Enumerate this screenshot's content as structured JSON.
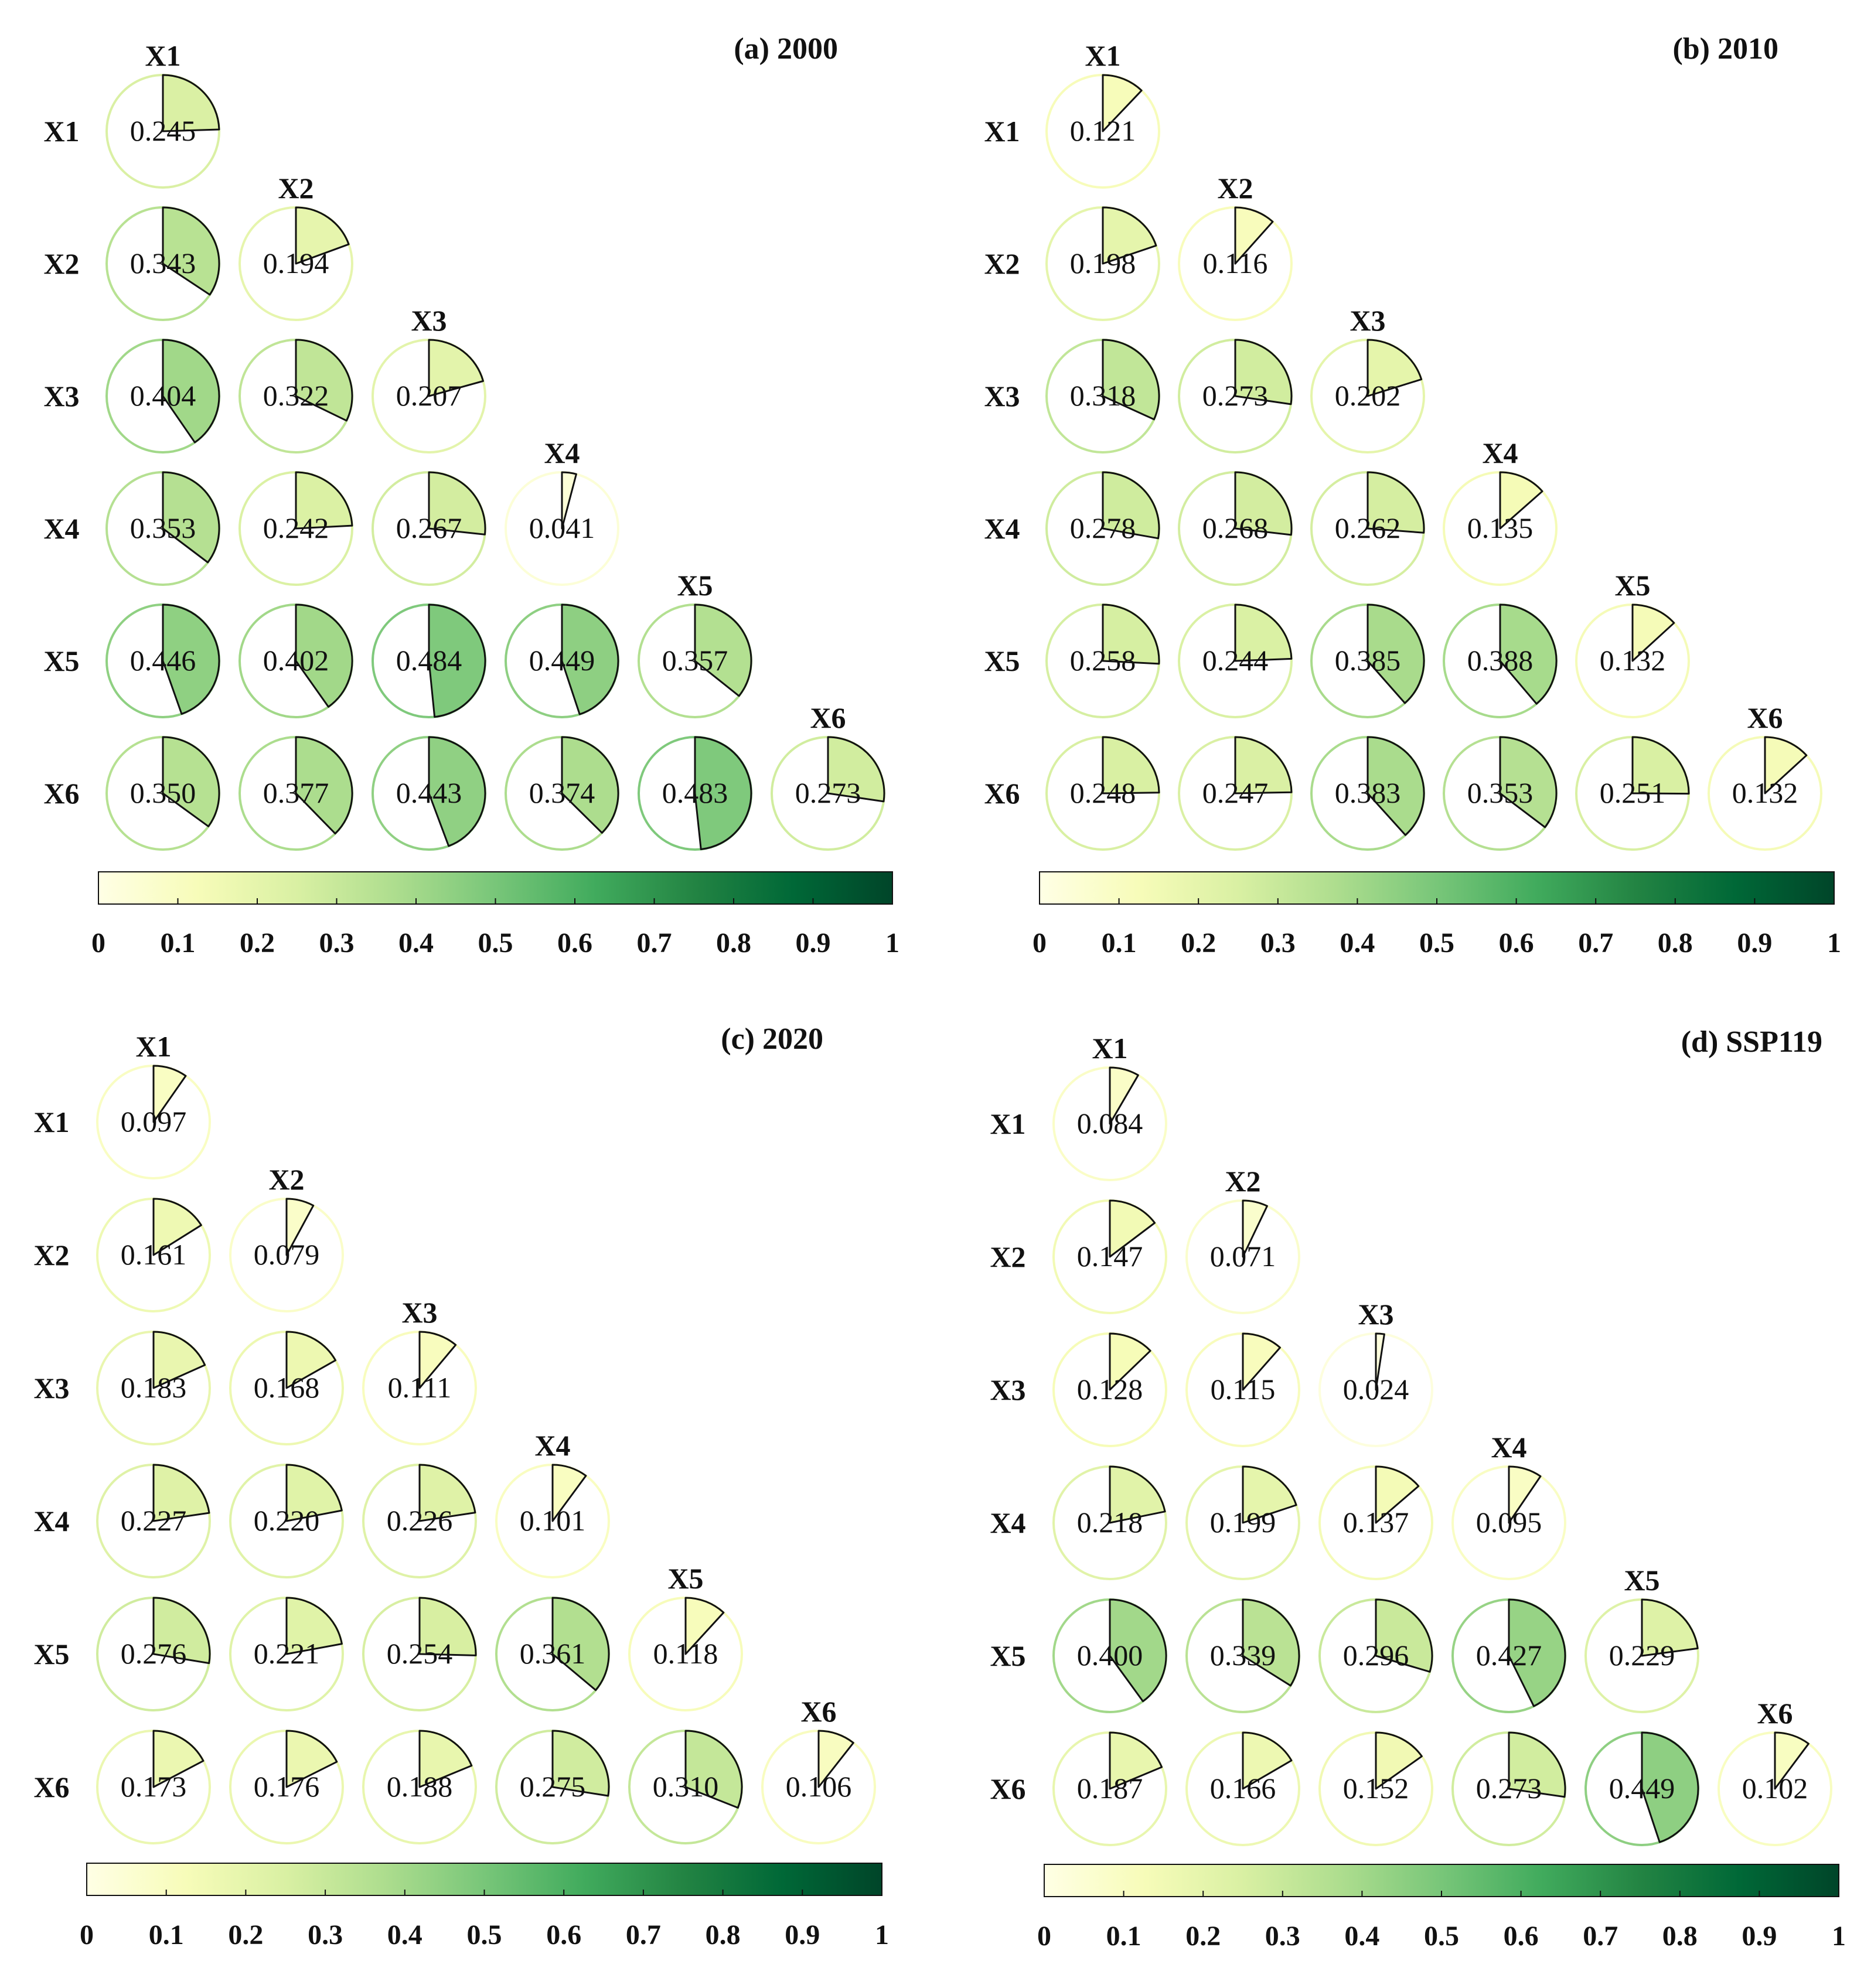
{
  "colors": {
    "scale": [
      "#ffffe5",
      "#f7fcb9",
      "#d9f0a3",
      "#addd8e",
      "#78c679",
      "#41ab5d",
      "#238443",
      "#006837",
      "#004529"
    ],
    "wedge_edge": "#111111",
    "text": "#111111"
  },
  "chart_data": [
    {
      "type": "heatmap",
      "title": "(a) 2000",
      "variables": [
        "X1",
        "X2",
        "X3",
        "X4",
        "X5",
        "X6"
      ],
      "layout": "lower-triangle pie matrix; wedge angle and fill color encode value",
      "values": [
        [
          0.245
        ],
        [
          0.343,
          0.194
        ],
        [
          0.404,
          0.322,
          0.207
        ],
        [
          0.353,
          0.242,
          0.267,
          0.041
        ],
        [
          0.446,
          0.402,
          0.484,
          0.449,
          0.357
        ],
        [
          0.35,
          0.377,
          0.443,
          0.374,
          0.483,
          0.273
        ]
      ],
      "labels": [
        [
          "0.245"
        ],
        [
          "0.343",
          "0.194"
        ],
        [
          "0.404",
          "0.322",
          "0.207"
        ],
        [
          "0.353",
          "0.242",
          "0.267",
          "0.041"
        ],
        [
          "0.446",
          "0.402",
          "0.484",
          "0.449",
          "0.357"
        ],
        [
          "0.350",
          "0.377",
          "0.443",
          "0.374",
          "0.483",
          "0.273"
        ]
      ],
      "colorbar": {
        "range": [
          0,
          1
        ],
        "ticks": [
          "0",
          "0.1",
          "0.2",
          "0.3",
          "0.4",
          "0.5",
          "0.6",
          "0.7",
          "0.8",
          "0.9",
          "1"
        ]
      }
    },
    {
      "type": "heatmap",
      "title": "(b) 2010",
      "variables": [
        "X1",
        "X2",
        "X3",
        "X4",
        "X5",
        "X6"
      ],
      "layout": "lower-triangle pie matrix; wedge angle and fill color encode value",
      "values": [
        [
          0.121
        ],
        [
          0.198,
          0.116
        ],
        [
          0.318,
          0.273,
          0.202
        ],
        [
          0.278,
          0.268,
          0.262,
          0.135
        ],
        [
          0.258,
          0.244,
          0.385,
          0.388,
          0.132
        ],
        [
          0.248,
          0.247,
          0.383,
          0.353,
          0.251,
          0.132
        ]
      ],
      "labels": [
        [
          "0.121"
        ],
        [
          "0.198",
          "0.116"
        ],
        [
          "0.318",
          "0.273",
          "0.202"
        ],
        [
          "0.278",
          "0.268",
          "0.262",
          "0.135"
        ],
        [
          "0.258",
          "0.244",
          "0.385",
          "0.388",
          "0.132"
        ],
        [
          "0.248",
          "0.247",
          "0.383",
          "0.353",
          "0.251",
          "0.132"
        ]
      ],
      "colorbar": {
        "range": [
          0,
          1
        ],
        "ticks": [
          "0",
          "0.1",
          "0.2",
          "0.3",
          "0.4",
          "0.5",
          "0.6",
          "0.7",
          "0.8",
          "0.9",
          "1"
        ]
      }
    },
    {
      "type": "heatmap",
      "title": "(c) 2020",
      "variables": [
        "X1",
        "X2",
        "X3",
        "X4",
        "X5",
        "X6"
      ],
      "layout": "lower-triangle pie matrix; wedge angle and fill color encode value",
      "values": [
        [
          0.097
        ],
        [
          0.161,
          0.079
        ],
        [
          0.183,
          0.168,
          0.111
        ],
        [
          0.227,
          0.22,
          0.226,
          0.101
        ],
        [
          0.276,
          0.221,
          0.254,
          0.361,
          0.118
        ],
        [
          0.173,
          0.176,
          0.188,
          0.275,
          0.31,
          0.106
        ]
      ],
      "labels": [
        [
          "0.097"
        ],
        [
          "0.161",
          "0.079"
        ],
        [
          "0.183",
          "0.168",
          "0.111"
        ],
        [
          "0.227",
          "0.220",
          "0.226",
          "0.101"
        ],
        [
          "0.276",
          "0.221",
          "0.254",
          "0.361",
          "0.118"
        ],
        [
          "0.173",
          "0.176",
          "0.188",
          "0.275",
          "0.310",
          "0.106"
        ]
      ],
      "colorbar": {
        "range": [
          0,
          1
        ],
        "ticks": [
          "0",
          "0.1",
          "0.2",
          "0.3",
          "0.4",
          "0.5",
          "0.6",
          "0.7",
          "0.8",
          "0.9",
          "1"
        ]
      }
    },
    {
      "type": "heatmap",
      "title": "(d) SSP119",
      "variables": [
        "X1",
        "X2",
        "X3",
        "X4",
        "X5",
        "X6"
      ],
      "layout": "lower-triangle pie matrix; wedge angle and fill color encode value",
      "values": [
        [
          0.084
        ],
        [
          0.147,
          0.071
        ],
        [
          0.128,
          0.115,
          0.024
        ],
        [
          0.218,
          0.199,
          0.137,
          0.095
        ],
        [
          0.4,
          0.339,
          0.296,
          0.427,
          0.229
        ],
        [
          0.187,
          0.166,
          0.152,
          0.273,
          0.449,
          0.102
        ]
      ],
      "labels": [
        [
          "0.084"
        ],
        [
          "0.147",
          "0.071"
        ],
        [
          "0.128",
          "0.115",
          "0.024"
        ],
        [
          "0.218",
          "0.199",
          "0.137",
          "0.095"
        ],
        [
          "0.400",
          "0.339",
          "0.296",
          "0.427",
          "0.229"
        ],
        [
          "0.187",
          "0.166",
          "0.152",
          "0.273",
          "0.449",
          "0.102"
        ]
      ],
      "colorbar": {
        "range": [
          0,
          1
        ],
        "ticks": [
          "0",
          "0.1",
          "0.2",
          "0.3",
          "0.4",
          "0.5",
          "0.6",
          "0.7",
          "0.8",
          "0.9",
          "1"
        ]
      }
    }
  ]
}
